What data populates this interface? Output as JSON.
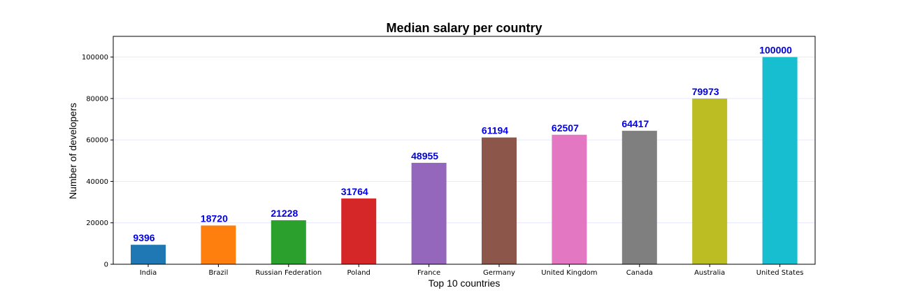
{
  "chart_data": {
    "type": "bar",
    "title": "Median salary per country",
    "xlabel": "Top 10 countries",
    "ylabel": "Number of developers",
    "categories": [
      "India",
      "Brazil",
      "Russian Federation",
      "Poland",
      "France",
      "Germany",
      "United Kingdom",
      "Canada",
      "Australia",
      "United States"
    ],
    "values": [
      9396,
      18720,
      21228,
      31764,
      48955,
      61194,
      62507,
      64417,
      79973,
      100000
    ],
    "ylim": [
      0,
      110000
    ],
    "yticks": [
      0,
      20000,
      40000,
      60000,
      80000,
      100000
    ],
    "grid": true,
    "colors": [
      "#1f77b4",
      "#ff7f0e",
      "#2ca02c",
      "#d62728",
      "#9467bd",
      "#8c564b",
      "#e377c2",
      "#7f7f7f",
      "#bcbd22",
      "#17becf"
    ],
    "label_color": "#0000e6"
  }
}
